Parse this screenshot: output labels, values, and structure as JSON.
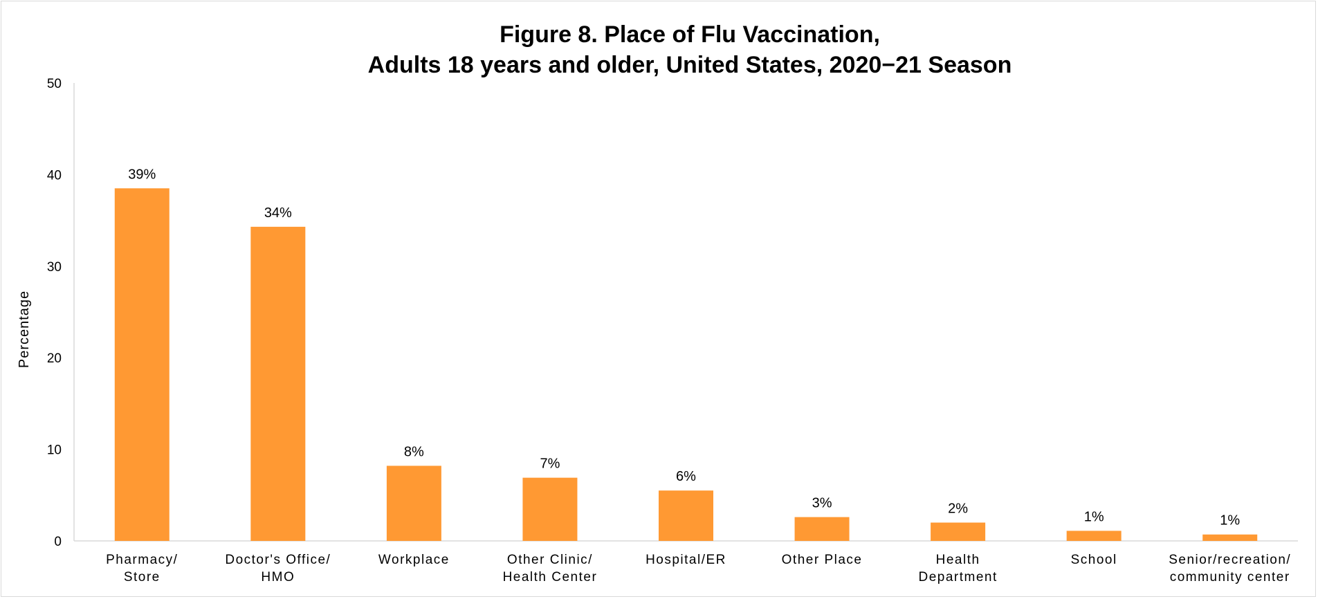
{
  "chart_data": {
    "type": "bar",
    "title": [
      "Figure 8. Place of Flu Vaccination,",
      "Adults 18 years and older, United States, 2020−21 Season"
    ],
    "xlabel": "",
    "ylabel": "Percentage",
    "ylim": [
      0,
      50
    ],
    "yticks": [
      "0",
      "10",
      "20",
      "30",
      "40",
      "50"
    ],
    "grid": false,
    "legend": "none",
    "bar_color": "#FF9933",
    "categories": [
      [
        "Pharmacy/",
        "Store"
      ],
      [
        "Doctor's Office/",
        "HMO"
      ],
      [
        "Workplace"
      ],
      [
        "Other Clinic/",
        "Health Center"
      ],
      [
        "Hospital/ER"
      ],
      [
        "Other Place"
      ],
      [
        "Health",
        "Department"
      ],
      [
        "School"
      ],
      [
        "Senior/recreation/",
        "community center"
      ]
    ],
    "values": [
      38.5,
      34.3,
      8.2,
      6.9,
      5.5,
      2.6,
      2.0,
      1.1,
      0.7
    ],
    "data_labels": [
      "39%",
      "34%",
      "8%",
      "7%",
      "6%",
      "3%",
      "2%",
      "1%",
      "1%"
    ]
  }
}
